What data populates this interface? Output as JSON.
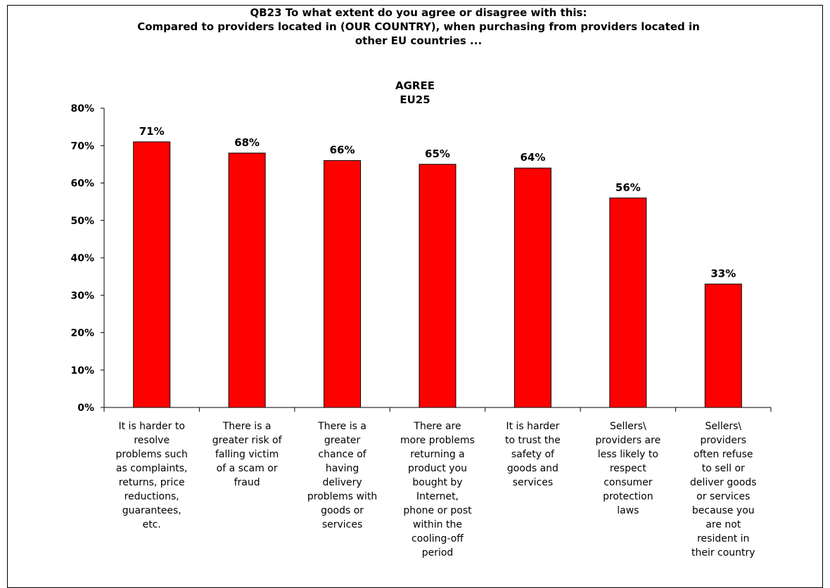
{
  "chart_data": {
    "type": "bar",
    "title": "QB23 To what extent do you agree or disagree with this:\nCompared to providers located in (OUR COUNTRY), when purchasing from providers located in\nother EU countries ...",
    "subtitle": "AGREE\nEU25",
    "xlabel": "",
    "ylabel": "",
    "ylim": [
      0,
      80
    ],
    "yticks": [
      "0%",
      "10%",
      "20%",
      "30%",
      "40%",
      "50%",
      "60%",
      "70%",
      "80%"
    ],
    "grid": false,
    "legend": "none",
    "bar_color": "#ff0000",
    "categories": [
      "It is harder to resolve problems such as complaints, returns, price reductions, guarantees, etc.",
      "There is a greater risk of falling victim of a scam or fraud",
      "There is a greater chance of having delivery problems with goods or services",
      "There are more problems returning a product you bought by Internet, phone or post within the cooling-off period",
      "It is harder to trust the safety of goods and services",
      "Sellers\\ providers are less likely to respect consumer protection laws",
      "Sellers\\ providers often refuse to sell or deliver goods or services because you are not resident in their country"
    ],
    "values": [
      71,
      68,
      66,
      65,
      64,
      56,
      33
    ],
    "value_labels": [
      "71%",
      "68%",
      "66%",
      "65%",
      "64%",
      "56%",
      "33%"
    ]
  },
  "category_lines": [
    [
      "It is harder to",
      "resolve",
      "problems such",
      "as complaints,",
      "returns, price",
      "reductions,",
      "guarantees,",
      "etc."
    ],
    [
      "There is a",
      "greater risk of",
      "falling victim",
      "of a scam or",
      "fraud"
    ],
    [
      "There is a",
      "greater",
      "chance of",
      "having",
      "delivery",
      "problems with",
      "goods or",
      "services"
    ],
    [
      "There are",
      "more problems",
      "returning a",
      "product you",
      "bought by",
      "Internet,",
      "phone or post",
      "within the",
      "cooling-off",
      "period"
    ],
    [
      "It is harder",
      "to trust the",
      "safety of",
      "goods and",
      "services"
    ],
    [
      "Sellers\\",
      "providers are",
      "less likely to",
      "respect",
      "consumer",
      "protection",
      "laws"
    ],
    [
      "Sellers\\",
      "providers",
      "often refuse",
      "to sell or",
      "deliver goods",
      "or services",
      "because you",
      "are not",
      "resident in",
      "their country"
    ]
  ]
}
